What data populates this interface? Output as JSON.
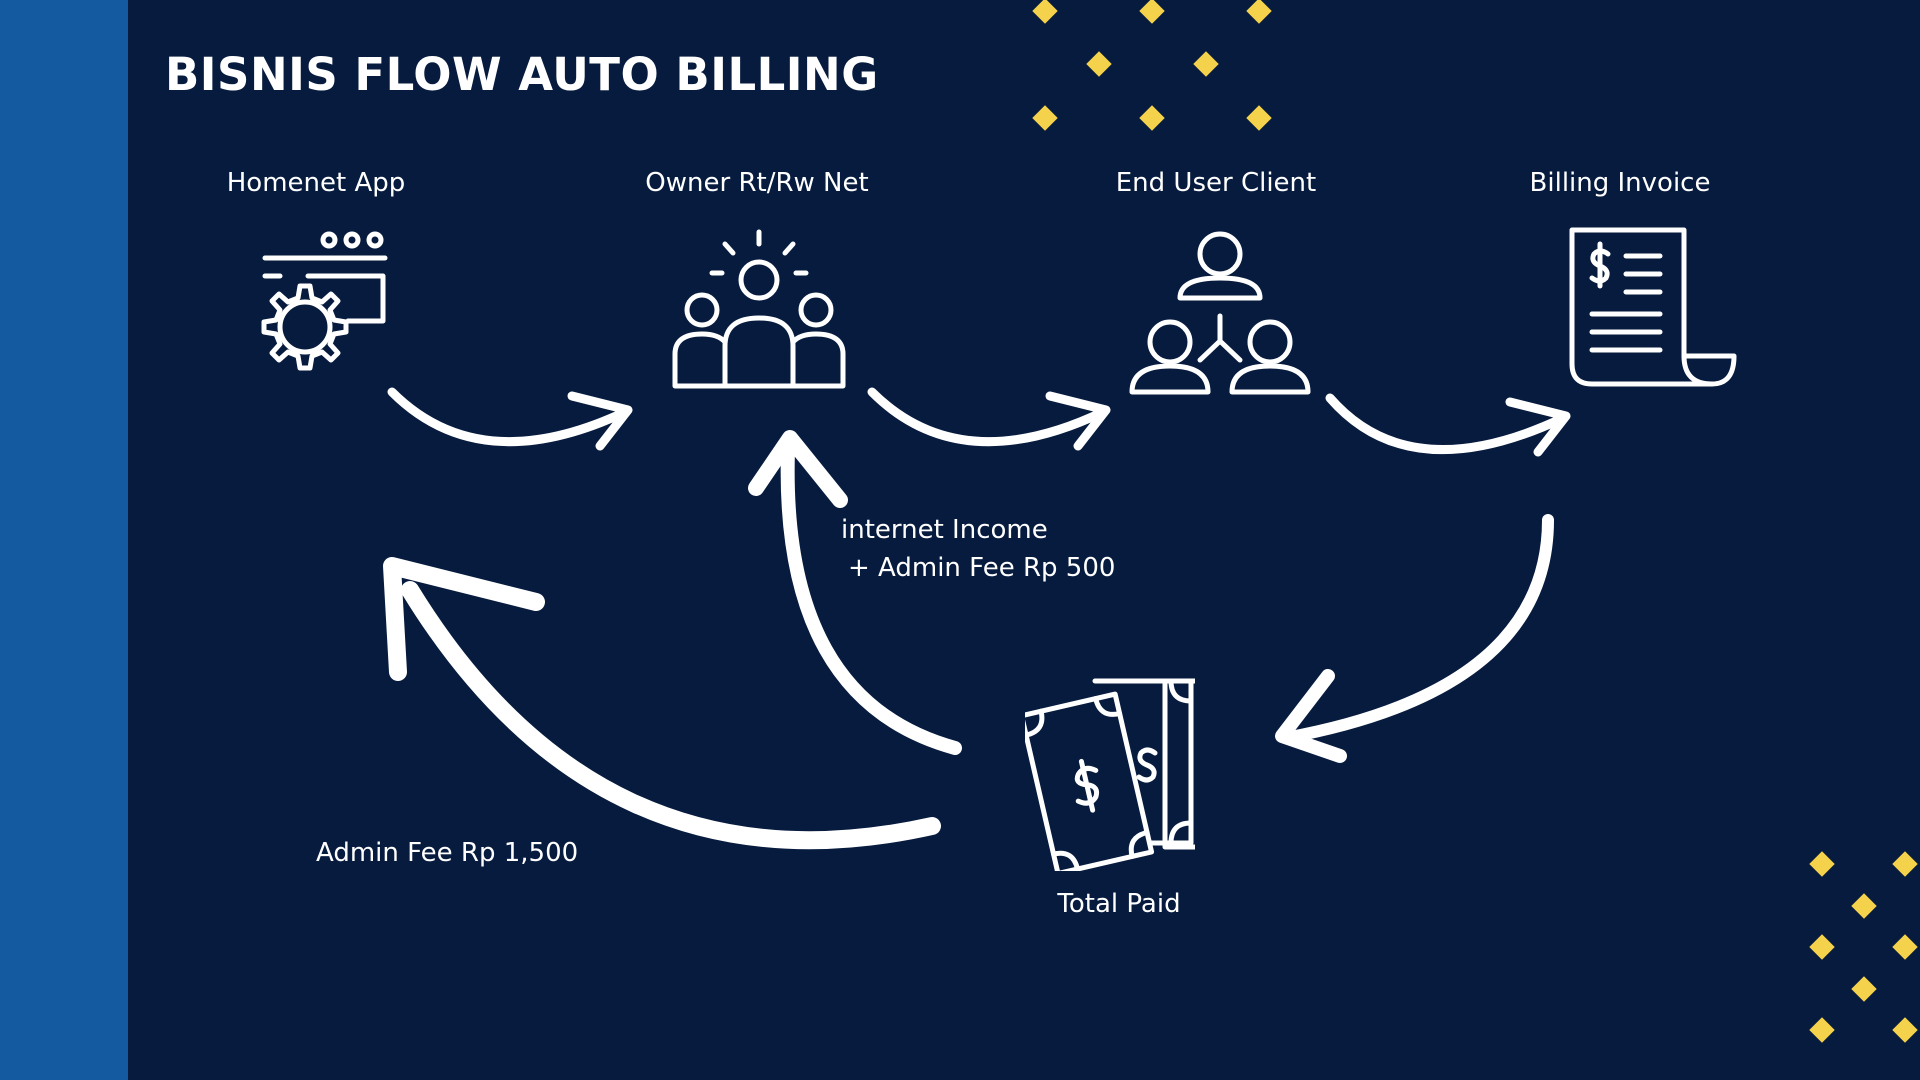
{
  "title": "BISNIS FLOW AUTO BILLING",
  "nodes": {
    "homenet_app": "Homenet App",
    "owner": "Owner Rt/Rw Net",
    "end_user": "End User Client",
    "billing_invoice": "Billing Invoice",
    "total_paid": "Total Paid"
  },
  "flows": {
    "internet_income": "internet Income",
    "admin_fee_owner": "+ Admin Fee Rp 500",
    "admin_fee_app": "Admin Fee Rp 1,500"
  },
  "colors": {
    "background": "#061b3e",
    "sidebar": "#135aa0",
    "foreground": "#ffffff",
    "accent": "#f5d24b"
  },
  "icons": {
    "homenet_app": "app-gear-icon",
    "owner": "team-icon",
    "end_user": "user-network-icon",
    "billing_invoice": "invoice-icon",
    "total_paid": "money-icon"
  }
}
